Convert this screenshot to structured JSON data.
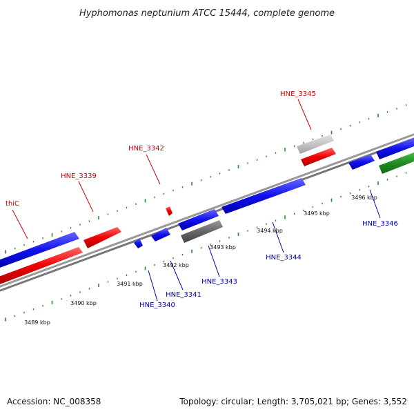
{
  "title": "Hyphomonas neptunium ATCC 15444, complete genome",
  "footer": {
    "accession": "Accession: NC_008358",
    "topology": "Topology: circular; Length: 3,705,021 bp; Genes: 3,552"
  },
  "colors": {
    "forward_label": "#cc0000",
    "reverse_label": "#0000aa",
    "backbone": "#888888",
    "ticks": "#228b22"
  },
  "scale": {
    "kbp_labels": [
      "3489 kbp",
      "3490 kbp",
      "3491 kbp",
      "3492 kbp",
      "3493 kbp",
      "3494 kbp",
      "3495 kbp",
      "3496 kbp"
    ]
  },
  "genes_top": [
    {
      "label": "thiC",
      "color": "red"
    },
    {
      "label": "HNE_3339",
      "color": "red"
    },
    {
      "label": "HNE_3342",
      "color": "red"
    },
    {
      "label": "HNE_3345",
      "color": "red"
    }
  ],
  "genes_bottom": [
    {
      "label": "HNE_3340",
      "color": "blue"
    },
    {
      "label": "HNE_3341",
      "color": "blue"
    },
    {
      "label": "HNE_3343",
      "color": "blue"
    },
    {
      "label": "HNE_3344",
      "color": "blue"
    },
    {
      "label": "HNE_3346",
      "color": "blue"
    }
  ]
}
